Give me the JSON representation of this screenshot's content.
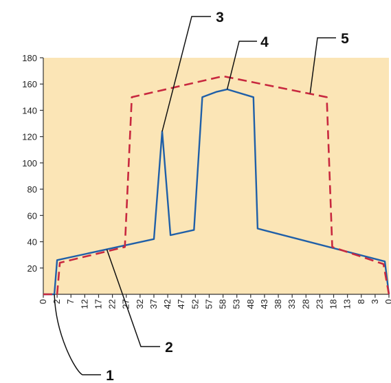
{
  "chart_data": {
    "type": "line",
    "title": "",
    "xlabel": "",
    "ylabel": "",
    "ylim": [
      0,
      180
    ],
    "yticks": [
      20,
      40,
      60,
      80,
      100,
      120,
      140,
      160,
      180
    ],
    "y_zero_label": "0",
    "x_tick_labels": [
      "0",
      "2",
      "7",
      "12",
      "17",
      "22",
      "27",
      "32",
      "37",
      "42",
      "47",
      "52",
      "57",
      "58",
      "53",
      "48",
      "43",
      "38",
      "33",
      "28",
      "23",
      "18",
      "13",
      "8",
      "3",
      "0"
    ],
    "x_range": [
      0,
      25
    ],
    "grid": false,
    "colors": {
      "plot_background": "#fbe5b6",
      "solid_series": "#1f5fa8",
      "dashed_series": "#c8283f",
      "axis": "#333333",
      "callout_line": "#111111"
    },
    "series": [
      {
        "style": "solid",
        "points": [
          [
            0,
            0
          ],
          [
            0.8,
            0
          ],
          [
            1,
            26
          ],
          [
            8,
            42
          ],
          [
            8.6,
            124
          ],
          [
            9.2,
            45
          ],
          [
            10.9,
            49
          ],
          [
            11.5,
            150
          ],
          [
            12.5,
            154
          ],
          [
            13.3,
            156
          ],
          [
            15.2,
            150
          ],
          [
            15.5,
            50
          ],
          [
            24.7,
            25
          ],
          [
            25,
            0
          ]
        ]
      },
      {
        "style": "dashed",
        "points": [
          [
            0,
            0
          ],
          [
            1,
            0
          ],
          [
            1.2,
            24
          ],
          [
            5.9,
            36
          ],
          [
            6.4,
            150
          ],
          [
            13,
            166
          ],
          [
            20.5,
            150
          ],
          [
            20.9,
            36
          ],
          [
            24.6,
            23
          ],
          [
            25,
            0
          ]
        ]
      }
    ],
    "annotations": [
      {
        "label": "1",
        "anchor": [
          0.8,
          0
        ]
      },
      {
        "label": "2",
        "anchor": [
          4.6,
          34
        ]
      },
      {
        "label": "3",
        "anchor": [
          8.6,
          124
        ]
      },
      {
        "label": "4",
        "anchor": [
          13.3,
          156
        ]
      },
      {
        "label": "5",
        "anchor": [
          19.3,
          153
        ]
      }
    ]
  }
}
